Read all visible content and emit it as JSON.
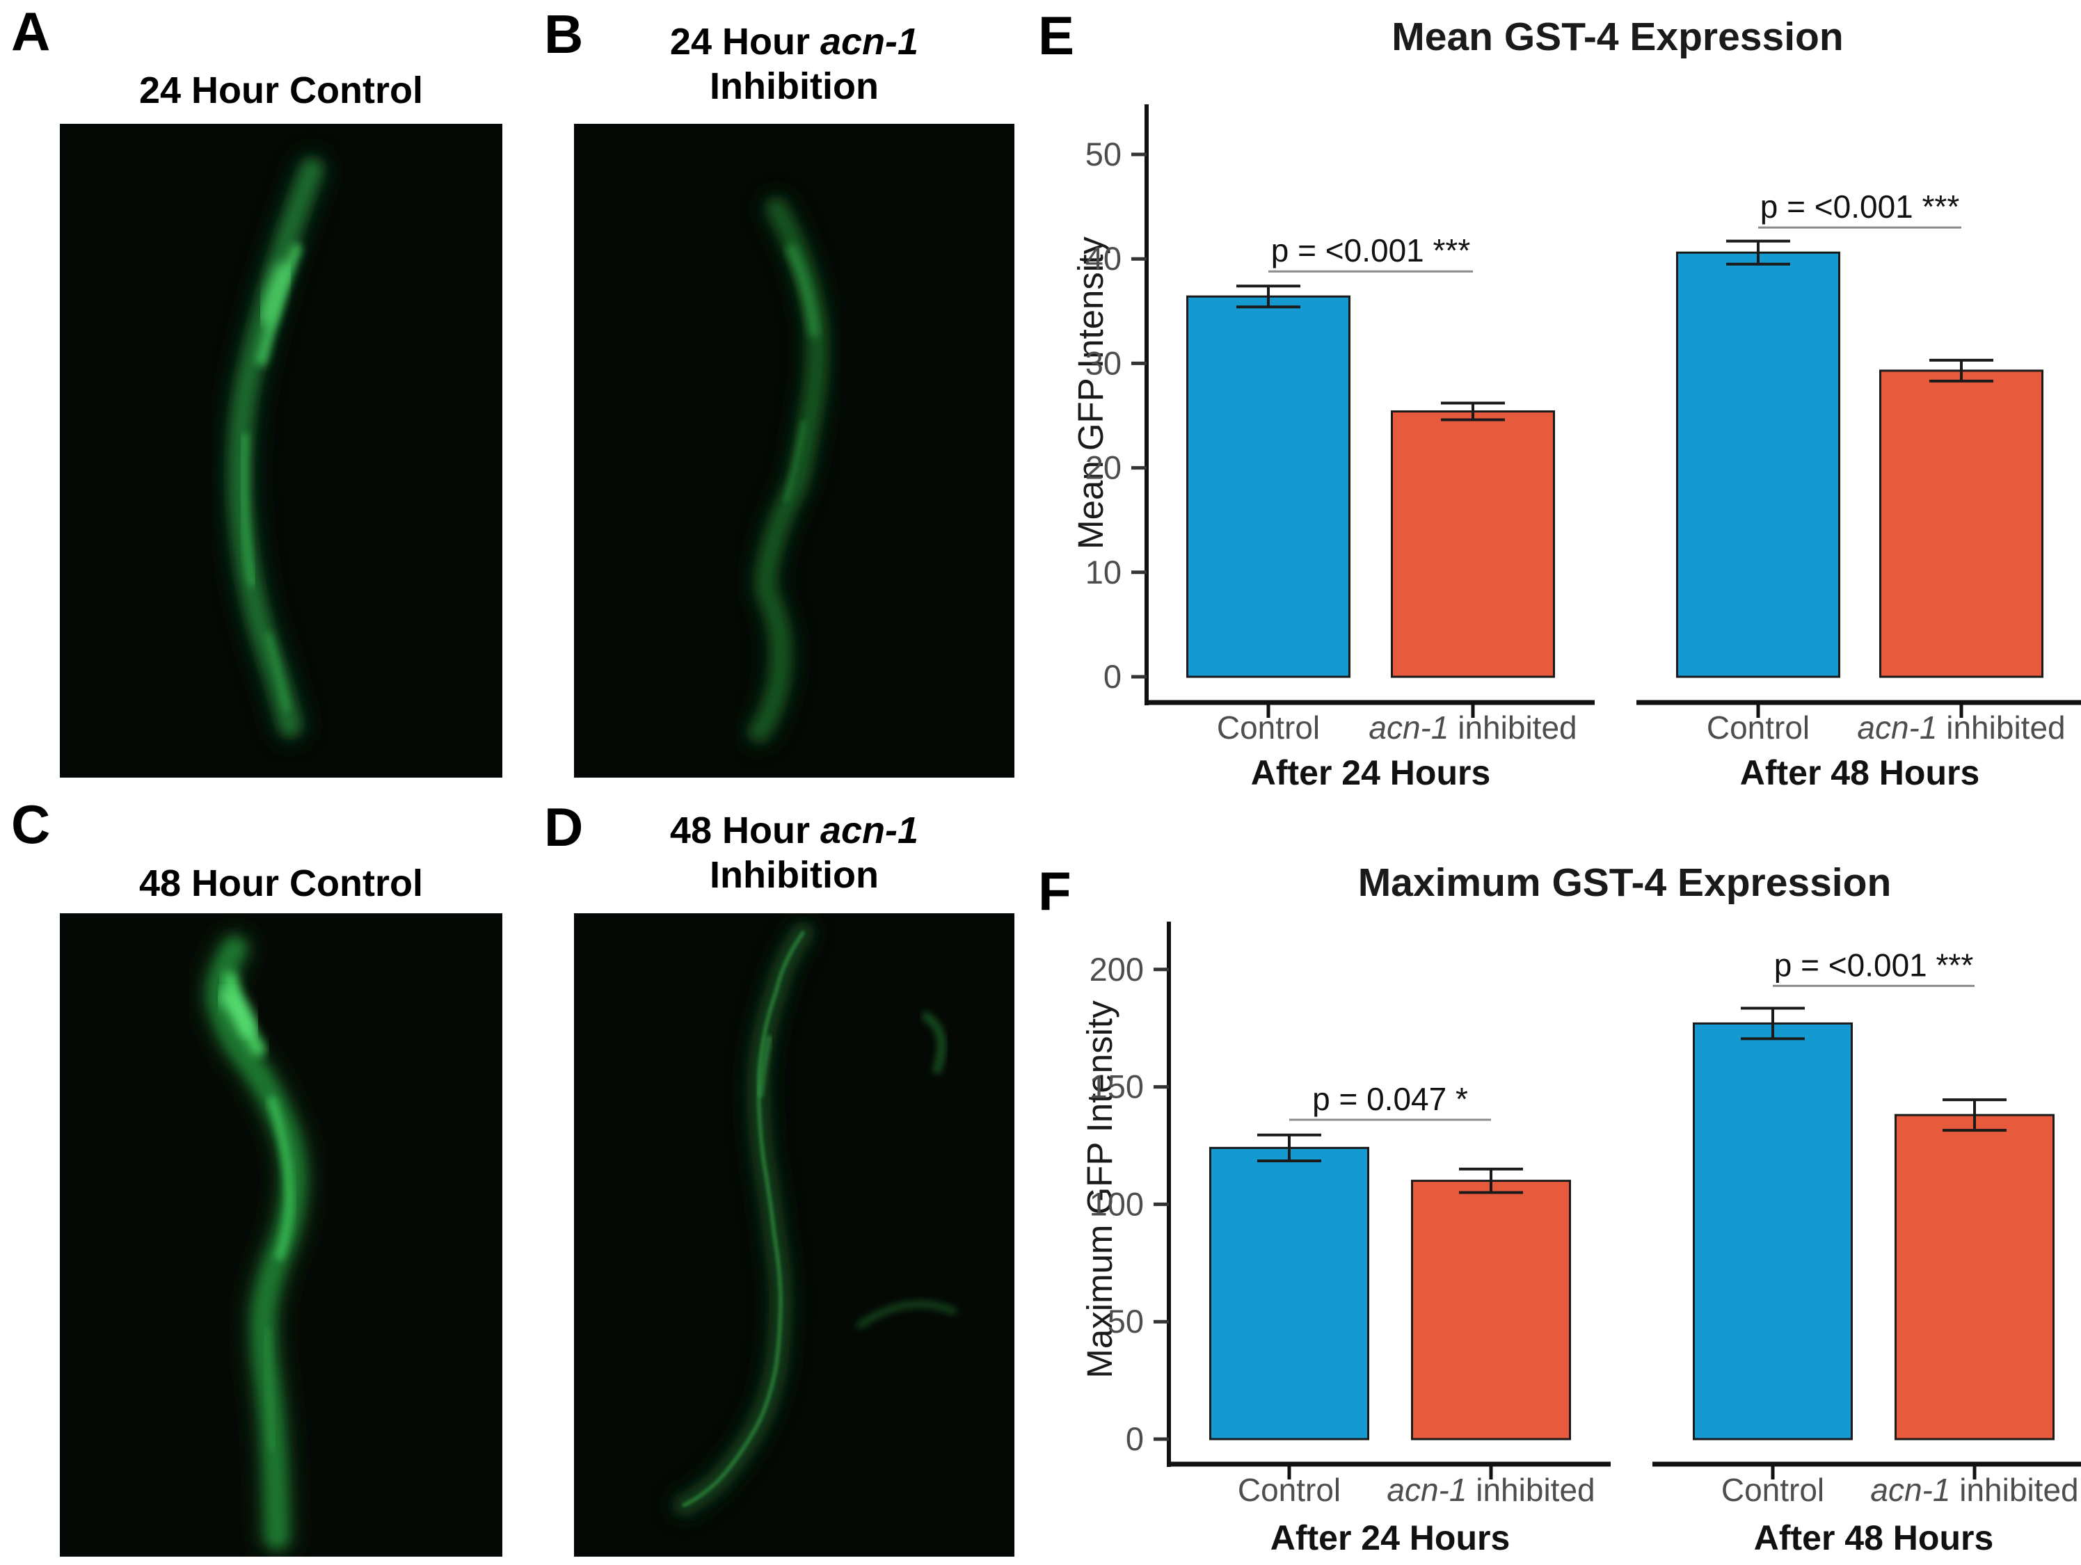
{
  "figure": {
    "micrograph_panels": [
      {
        "letter": "A",
        "title_prefix": "24 Hour Control",
        "title_italic": "",
        "title_line2": ""
      },
      {
        "letter": "B",
        "title_prefix": "24 Hour ",
        "title_italic": "acn-1",
        "title_line2": "Inhibition"
      },
      {
        "letter": "C",
        "title_prefix": "48 Hour Control",
        "title_italic": "",
        "title_line2": ""
      },
      {
        "letter": "D",
        "title_prefix": "48 Hour ",
        "title_italic": "acn-1",
        "title_line2": "Inhibition"
      }
    ],
    "colors": {
      "bar_blue": "#149AD0",
      "bar_red": "#E85A3C",
      "axis": "#111111",
      "tick_label_gray": "#4d4d4d",
      "worm_green": "#2f9e44",
      "micrograph_background": "#060a06"
    }
  },
  "chart_data": [
    {
      "letter": "E",
      "type": "bar",
      "title": "Mean GST-4 Expression",
      "ylabel": "Mean GFP Intensity",
      "xlabel": "",
      "ylim": [
        0,
        55
      ],
      "yticks": [
        0,
        10,
        20,
        30,
        40,
        50
      ],
      "grid": false,
      "legend": false,
      "facets": [
        {
          "label": "After 24 Hours",
          "p_annotation": "p = <0.001 ***",
          "bracket_y": 38.8,
          "bars": [
            {
              "category_italic": "",
              "category": "Control",
              "value": 36.4,
              "error": 1.0,
              "color": "#149AD0"
            },
            {
              "category_italic": "acn-1",
              "category": " inhibited",
              "value": 25.4,
              "error": 0.8,
              "color": "#E85A3C"
            }
          ]
        },
        {
          "label": "After 48 Hours",
          "p_annotation": "p = <0.001 ***",
          "bracket_y": 43.0,
          "bars": [
            {
              "category_italic": "",
              "category": "Control",
              "value": 40.6,
              "error": 1.1,
              "color": "#149AD0"
            },
            {
              "category_italic": "acn-1",
              "category": " inhibited",
              "value": 29.3,
              "error": 1.0,
              "color": "#E85A3C"
            }
          ]
        }
      ]
    },
    {
      "letter": "F",
      "type": "bar",
      "title": "Maximum GST-4 Expression",
      "ylabel": "Maximum GFP Intensity",
      "xlabel": "",
      "ylim": [
        0,
        235
      ],
      "yticks": [
        0,
        50,
        100,
        150,
        200
      ],
      "grid": false,
      "legend": false,
      "facets": [
        {
          "label": "After 24 Hours",
          "p_annotation": "p = 0.047 *",
          "bracket_y": 136,
          "bars": [
            {
              "category_italic": "",
              "category": "Control",
              "value": 124,
              "error": 5.5,
              "color": "#149AD0"
            },
            {
              "category_italic": "acn-1",
              "category": " inhibited",
              "value": 110,
              "error": 5.0,
              "color": "#E85A3C"
            }
          ]
        },
        {
          "label": "After 48 Hours",
          "p_annotation": "p = <0.001 ***",
          "bracket_y": 193,
          "bars": [
            {
              "category_italic": "",
              "category": "Control",
              "value": 177,
              "error": 6.5,
              "color": "#149AD0"
            },
            {
              "category_italic": "acn-1",
              "category": " inhibited",
              "value": 138,
              "error": 6.5,
              "color": "#E85A3C"
            }
          ]
        }
      ]
    }
  ]
}
